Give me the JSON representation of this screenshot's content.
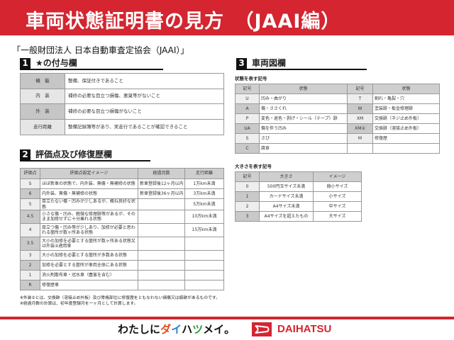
{
  "header": {
    "title": "車両状態証明書の見方　（JAAI編）"
  },
  "organization": "「一般財団法人 日本自動車査定協会（JAAI）」",
  "section1": {
    "num": "1",
    "title": "★の付与欄",
    "rows": [
      {
        "label": "機　能",
        "text": "整備、保証付きであること"
      },
      {
        "label": "内　装",
        "text": "補修の必要な目立つ損傷、悪臭等がないこと"
      },
      {
        "label": "外　装",
        "text": "補修の必要な目立つ損傷がないこと"
      },
      {
        "label": "走行距離",
        "text": "整備記録簿等があり、実走行であることが確認できること"
      }
    ]
  },
  "section2": {
    "num": "2",
    "title": "評価点及び修復歴欄",
    "headers": [
      "評価点",
      "評価点設定イメージ",
      "経過月数",
      "走行距離"
    ],
    "rows": [
      {
        "score": "S",
        "desc": "ほぼ新車の状態で、内外装、無傷・無補修の状態",
        "months": "新車登録後12ヶ月以内",
        "distance": "1万km未満"
      },
      {
        "score": "6",
        "desc": "内外装、無傷・無補修の状態",
        "months": "新車登録後36ヶ月以内",
        "distance": "3万km未満"
      },
      {
        "score": "5",
        "desc": "目立たない傷・凹みが少しあるが、概ね良好な状態",
        "months": "",
        "distance": "5万km未満"
      },
      {
        "score": "4.5",
        "desc": "小さな傷・凹み、軽微な修理跡等があるが、そのまま加修せずに十分乗れる状態",
        "months": "",
        "distance": "10万km未満"
      },
      {
        "score": "4",
        "desc": "目立つ傷・凹み等が少しあり、加修が必要と思われる箇所が数ヶ所ある状態",
        "months": "",
        "distance": "15万km未満"
      },
      {
        "score": "3.5",
        "desc": "大小の加修を必要とする箇所が数ヶ所ある状態又は外装②適用車",
        "months": "",
        "distance": ""
      },
      {
        "score": "3",
        "desc": "大小の加修を必要とする箇所が多数ある状態",
        "months": "",
        "distance": ""
      },
      {
        "score": "2",
        "desc": "加修を必要とする箇所が車両全体にある状態",
        "months": "",
        "distance": ""
      },
      {
        "score": "1",
        "desc": "消火剤散布車・冠水車（塵害を含む）",
        "months": "",
        "distance": ""
      },
      {
        "score": "R",
        "desc": "修復歴車",
        "months": "",
        "distance": ""
      }
    ]
  },
  "section3": {
    "num": "3",
    "title": "車両図欄",
    "state_title": "状態を表す記号",
    "state_headers": [
      "記号",
      "状態",
      "記号",
      "状態"
    ],
    "state_rows": [
      [
        "U",
        "凹み・曲がり",
        "T",
        "割れ・亀裂・穴"
      ],
      [
        "A",
        "傷・ささくれ",
        "W",
        "塗装跡・板金修理跡"
      ],
      [
        "P",
        "変色・退色・剥げ・シール（テープ）跡",
        "XM",
        "交換跡（ネジ止め外板）"
      ],
      [
        "UA",
        "傷を伴う凹み",
        "XM②",
        "交換跡（溶接止め外板）"
      ],
      [
        "S",
        "さび",
        "M",
        "修復歴"
      ],
      [
        "C",
        "腐食",
        "",
        ""
      ]
    ],
    "size_title": "大きさを表す記号",
    "size_headers": [
      "記号",
      "大きさ",
      "イメージ"
    ],
    "size_rows": [
      [
        "0",
        "500円玉サイズ未満",
        "微小サイズ"
      ],
      [
        "1",
        "カードサイズ未満",
        "小サイズ"
      ],
      [
        "2",
        "A4サイズ未満",
        "中サイズ"
      ],
      [
        "3",
        "A4サイズを超えたもの",
        "大サイズ"
      ]
    ]
  },
  "notes": [
    "※外装②とは、交換跡（溶接止め外板）及び骨格部位に修復歴をともなわない損傷又は痕跡があるものです。",
    "※経過月数の計算は、初年度登録月を一ヶ月として計算します。"
  ],
  "footer": {
    "slogan": "わたしにダイハツメイ。",
    "brand": "DAIHATSU",
    "brand_color": "#d42530",
    "slogan_colors": [
      "#111",
      "#111",
      "#111",
      "#111",
      "#e04a1a",
      "#2a7fd0",
      "#111",
      "#2a9a3a",
      "#111",
      "#111"
    ]
  }
}
